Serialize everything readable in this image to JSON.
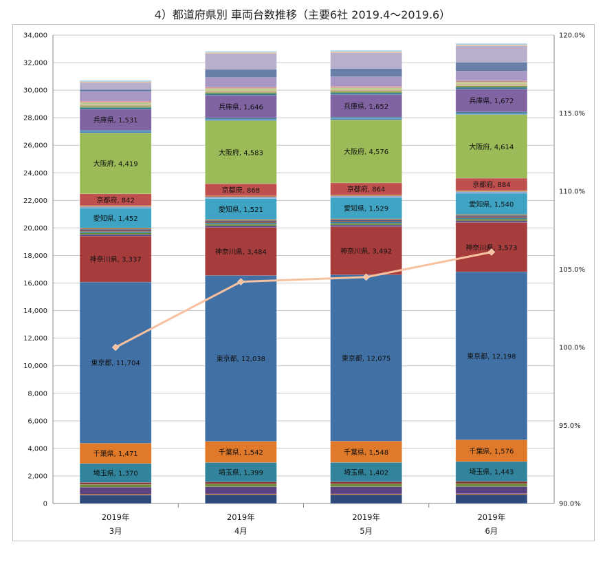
{
  "chart_data": {
    "type": "bar",
    "title": "4）都道府県別 車両台数推移（主要6社 2019.4～2019.6）",
    "categories": [
      {
        "year": "2019年",
        "month": "3月"
      },
      {
        "year": "2019年",
        "month": "4月"
      },
      {
        "year": "2019年",
        "month": "5月"
      },
      {
        "year": "2019年",
        "month": "6月"
      }
    ],
    "y_left": {
      "min": 0,
      "max": 34000,
      "step": 2000
    },
    "y_right": {
      "min": 90,
      "max": 120,
      "step": 5,
      "suffix": "%"
    },
    "grid": true,
    "stacked": true,
    "unlabeled_segment_colors": [
      "#2E4A7A",
      "#8B3A3A",
      "#6F8A3A",
      "#5A4380",
      "#2E7D92",
      "#C06A2A",
      "#8AA5CF",
      "#D68C8A",
      "#B7D08A",
      "#A896C4",
      "#8CCBDD",
      "#F2B77E"
    ],
    "series": [
      {
        "name": "",
        "color": "#2E4A7A",
        "values": [
          600,
          620,
          620,
          630
        ]
      },
      {
        "name": "",
        "color": "#A05A2A",
        "values": [
          80,
          80,
          80,
          80
        ]
      },
      {
        "name": "",
        "color": "#5A4380",
        "values": [
          500,
          510,
          515,
          520
        ]
      },
      {
        "name": "",
        "color": "#6F8A3A",
        "values": [
          200,
          205,
          205,
          210
        ]
      },
      {
        "name": "",
        "color": "#8B3A3A",
        "values": [
          150,
          155,
          155,
          160
        ]
      },
      {
        "name": "埼玉県",
        "color": "#31849B",
        "values": [
          1370,
          1399,
          1402,
          1443
        ]
      },
      {
        "name": "千葉県",
        "color": "#E0792A",
        "values": [
          1471,
          1542,
          1548,
          1576
        ]
      },
      {
        "name": "東京都",
        "color": "#4170A5",
        "values": [
          11704,
          12038,
          12075,
          12198
        ]
      },
      {
        "name": "神奈川県",
        "color": "#A63C3B",
        "values": [
          3337,
          3484,
          3492,
          3573
        ]
      },
      {
        "name": "",
        "color": "#5A4380",
        "values": [
          120,
          125,
          125,
          130
        ]
      },
      {
        "name": "",
        "color": "#6F8A3A",
        "values": [
          110,
          115,
          115,
          120
        ]
      },
      {
        "name": "",
        "color": "#2E7D92",
        "values": [
          100,
          100,
          100,
          100
        ]
      },
      {
        "name": "",
        "color": "#8B3A3A",
        "values": [
          90,
          90,
          90,
          90
        ]
      },
      {
        "name": "",
        "color": "#2E4A7A",
        "values": [
          80,
          80,
          80,
          80
        ]
      },
      {
        "name": "",
        "color": "#C06A2A",
        "values": [
          70,
          70,
          70,
          70
        ]
      },
      {
        "name": "愛知県",
        "color": "#3FA3C4",
        "values": [
          1452,
          1521,
          1529,
          1540
        ]
      },
      {
        "name": "",
        "color": "#8AA5CF",
        "values": [
          120,
          125,
          125,
          130
        ]
      },
      {
        "name": "",
        "color": "#C06A2A",
        "values": [
          80,
          80,
          80,
          80
        ]
      },
      {
        "name": "京都府",
        "color": "#C0504D",
        "values": [
          842,
          868,
          864,
          884
        ]
      },
      {
        "name": "大阪府",
        "color": "#9BBB59",
        "values": [
          4419,
          4583,
          4576,
          4614
        ]
      },
      {
        "name": "",
        "color": "#4F81BD",
        "values": [
          100,
          100,
          100,
          100
        ]
      },
      {
        "name": "",
        "color": "#31849B",
        "values": [
          90,
          90,
          90,
          90
        ]
      },
      {
        "name": "兵庫県",
        "color": "#8064A2",
        "values": [
          1531,
          1646,
          1652,
          1672
        ]
      },
      {
        "name": "",
        "color": "#2E7D92",
        "values": [
          120,
          120,
          120,
          120
        ]
      },
      {
        "name": "",
        "color": "#6F8A3A",
        "values": [
          100,
          100,
          100,
          100
        ]
      },
      {
        "name": "",
        "color": "#C9B28A",
        "values": [
          150,
          150,
          150,
          150
        ]
      },
      {
        "name": "",
        "color": "#B7D08A",
        "values": [
          120,
          120,
          120,
          120
        ]
      },
      {
        "name": "",
        "color": "#D68C8A",
        "values": [
          100,
          100,
          100,
          100
        ]
      },
      {
        "name": "",
        "color": "#A896C4",
        "values": [
          700,
          700,
          700,
          700
        ]
      },
      {
        "name": "",
        "color": "#6A7FA8",
        "values": [
          150,
          600,
          600,
          650
        ]
      },
      {
        "name": "",
        "color": "#B8AFCB",
        "values": [
          500,
          1150,
          1150,
          1200
        ]
      },
      {
        "name": "",
        "color": "#F2B77E",
        "values": [
          60,
          60,
          60,
          60
        ]
      },
      {
        "name": "",
        "color": "#8CCBDD",
        "values": [
          60,
          60,
          60,
          60
        ]
      },
      {
        "name": "",
        "color": "#C8D8EE",
        "values": [
          60,
          60,
          60,
          60
        ]
      }
    ],
    "line": {
      "name": "",
      "color": "#F7C09F",
      "values": [
        100.0,
        104.2,
        104.5,
        106.1
      ],
      "axis": "right"
    }
  }
}
